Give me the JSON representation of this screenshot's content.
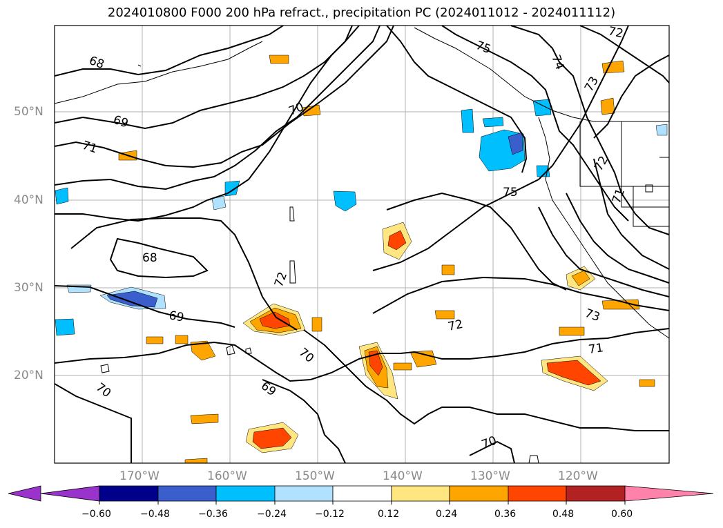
{
  "title": "2024010800 F000 200 hPa refract., precipitation PC (2024011012 - 2024011112)",
  "map": {
    "lat_labels": [
      "50°N",
      "40°N",
      "30°N",
      "20°N"
    ],
    "lon_labels": [
      "170°W",
      "160°W",
      "150°W",
      "140°W",
      "130°W",
      "120°W"
    ],
    "contour_labels": [
      "68",
      "69",
      "71",
      "70",
      "68",
      "69",
      "72",
      "70",
      "69",
      "70",
      "72",
      "73",
      "71",
      "70",
      "75",
      "75",
      "72",
      "73",
      "74",
      "72",
      "71"
    ],
    "contour_color": "#000000",
    "land_outline_color": "#000000"
  },
  "colorbar": {
    "tick_labels": [
      "−0.60",
      "−0.48",
      "−0.36",
      "−0.24",
      "−0.12",
      "0.12",
      "0.24",
      "0.36",
      "0.48",
      "0.60"
    ],
    "colors": [
      "#9933cc",
      "#00008b",
      "#3a5fcd",
      "#00bfff",
      "#b0e2ff",
      "#ffffff",
      "#ffe680",
      "#ffa500",
      "#ff4500",
      "#b22222",
      "#ff82ab"
    ]
  }
}
